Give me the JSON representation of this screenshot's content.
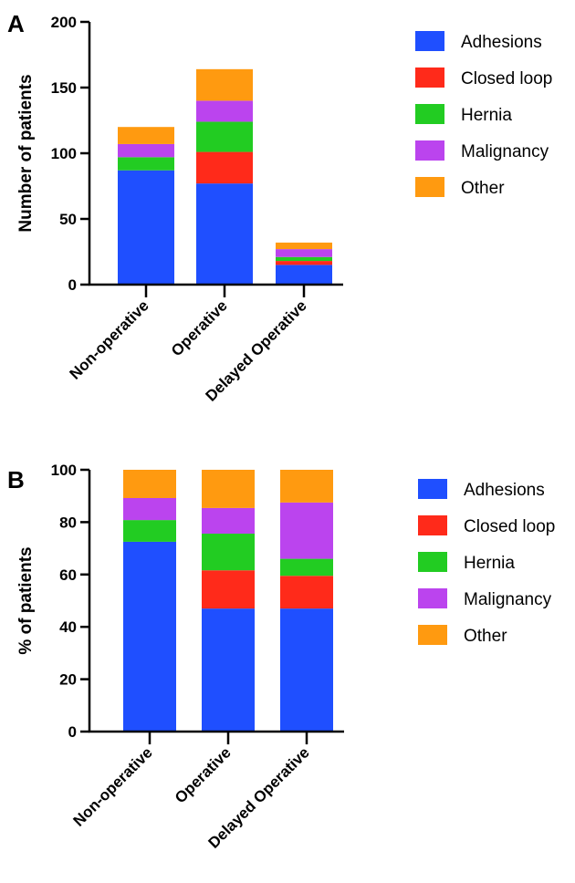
{
  "chart_data": [
    {
      "type": "bar",
      "stacked": true,
      "panel": "A",
      "ylabel": "Number of patients",
      "ylim": [
        0,
        200
      ],
      "yticks": [
        0,
        50,
        100,
        150,
        200
      ],
      "categories": [
        "Non-operative",
        "Operative",
        "Delayed Operative"
      ],
      "series": [
        {
          "name": "Adhesions",
          "color": "#1f4fff",
          "values": [
            87,
            77,
            15
          ]
        },
        {
          "name": "Closed loop",
          "color": "#ff2a1a",
          "values": [
            0,
            24,
            3
          ]
        },
        {
          "name": "Hernia",
          "color": "#22cc22",
          "values": [
            10,
            23,
            3
          ]
        },
        {
          "name": "Malignancy",
          "color": "#bb44ee",
          "values": [
            10,
            16,
            6
          ]
        },
        {
          "name": "Other",
          "color": "#ff9a10",
          "values": [
            13,
            24,
            5
          ]
        }
      ],
      "legend_position": "right"
    },
    {
      "type": "bar",
      "stacked": true,
      "panel": "B",
      "ylabel": "% of patients",
      "ylim": [
        0,
        100
      ],
      "yticks": [
        0,
        20,
        40,
        60,
        80,
        100
      ],
      "categories": [
        "Non-operative",
        "Operative",
        "Delayed Operative"
      ],
      "series": [
        {
          "name": "Adhesions",
          "color": "#1f4fff",
          "values": [
            72.5,
            47,
            47
          ]
        },
        {
          "name": "Closed loop",
          "color": "#ff2a1a",
          "values": [
            0,
            14.6,
            12.5
          ]
        },
        {
          "name": "Hernia",
          "color": "#22cc22",
          "values": [
            8.3,
            14,
            6.5
          ]
        },
        {
          "name": "Malignancy",
          "color": "#bb44ee",
          "values": [
            8.4,
            9.8,
            21.5
          ]
        },
        {
          "name": "Other",
          "color": "#ff9a10",
          "values": [
            10.8,
            14.6,
            12.5
          ]
        }
      ],
      "legend_position": "right"
    }
  ]
}
